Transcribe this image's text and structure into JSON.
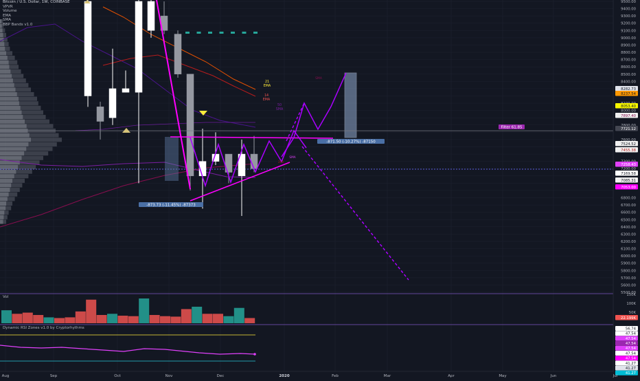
{
  "header": {
    "symbol_line": "Bitcoin / U.S. Dollar, 1W, COINBASE",
    "indicator_lines": [
      "VPVR",
      "Volume",
      "EMA",
      "SMA",
      "BBP Bands v1.0"
    ]
  },
  "price_axis": {
    "ticks": [
      "9500.00",
      "9400.00",
      "9300.00",
      "9200.00",
      "9100.00",
      "9000.00",
      "8900.00",
      "8800.00",
      "8700.00",
      "8600.00",
      "8500.00",
      "8400.00",
      "8100.00",
      "8000.00",
      "7800.00",
      "7600.00",
      "7300.00",
      "7200.00",
      "6800.00",
      "6700.00",
      "6600.00",
      "6500.00",
      "6400.00",
      "6300.00",
      "6200.00",
      "6100.00",
      "6000.00",
      "5900.00",
      "5800.00",
      "5700.00",
      "5600.00",
      "5500.00"
    ],
    "tags": [
      {
        "text": "8282.73",
        "bg": "#e0e3eb",
        "fg": "#131722"
      },
      {
        "text": "8237.54",
        "bg": "#ff9800",
        "fg": "#131722"
      },
      {
        "text": "8053.40",
        "bg": "#f7f700",
        "fg": "#131722"
      },
      {
        "text": "7897.40",
        "bg": "#f0f0f0",
        "fg": "#880e4f"
      },
      {
        "text": "7721.12",
        "bg": "#434651",
        "fg": "#ffffff"
      },
      {
        "text": "7524.52",
        "bg": "#f0f0f0",
        "fg": "#131722"
      },
      {
        "text": "7455.38",
        "bg": "#f0f0f0",
        "fg": "#b71c1c"
      },
      {
        "text": "7258.43",
        "bg": "#e040fb",
        "fg": "#ffffff"
      },
      {
        "text": "7169.58",
        "bg": "#ffffff",
        "fg": "#131722"
      },
      {
        "text": "7085.31",
        "bg": "#f0f0f0",
        "fg": "#131722"
      },
      {
        "text": "7053.00",
        "bg": "#ff00ff",
        "fg": "#ffffff"
      }
    ]
  },
  "annotations": {
    "range_left": "-873.73 (-11.45%) -87373",
    "range_right": "-871.50 (-10.27%) -87150",
    "filter_label": "Filter 61.85",
    "ma21": "21\nEMA",
    "ma14": "14\nEMA",
    "ma_small": "50\nSMA",
    "lbl_top": "SMA",
    "lbl_sma1": "SMA",
    "lbl_sma2": "200"
  },
  "volume_pane": {
    "title": "Vol",
    "axis": [
      "150K",
      "100K",
      "50K"
    ],
    "tag": {
      "text": "22.199K",
      "bg": "#ef5350"
    },
    "bars": [
      {
        "v": 55,
        "c": "up"
      },
      {
        "v": 40,
        "c": "dn"
      },
      {
        "v": 45,
        "c": "dn"
      },
      {
        "v": 35,
        "c": "dn"
      },
      {
        "v": 25,
        "c": "up"
      },
      {
        "v": 22,
        "c": "dn"
      },
      {
        "v": 25,
        "c": "dn"
      },
      {
        "v": 50,
        "c": "dn"
      },
      {
        "v": 100,
        "c": "dn"
      },
      {
        "v": 35,
        "c": "dn"
      },
      {
        "v": 40,
        "c": "up"
      },
      {
        "v": 32,
        "c": "dn"
      },
      {
        "v": 30,
        "c": "dn"
      },
      {
        "v": 105,
        "c": "up"
      },
      {
        "v": 35,
        "c": "dn"
      },
      {
        "v": 30,
        "c": "dn"
      },
      {
        "v": 28,
        "c": "dn"
      },
      {
        "v": 60,
        "c": "dn"
      },
      {
        "v": 70,
        "c": "up"
      },
      {
        "v": 40,
        "c": "dn"
      },
      {
        "v": 40,
        "c": "dn"
      },
      {
        "v": 30,
        "c": "up"
      },
      {
        "v": 65,
        "c": "up"
      },
      {
        "v": 22,
        "c": "dn"
      }
    ]
  },
  "rsi_pane": {
    "title": "Dynamic RSI Zones v1.0 by Cryptorhythms",
    "tags": [
      {
        "text": "56.74",
        "bg": "#ffffff",
        "fg": "#131722"
      },
      {
        "text": "47.54",
        "bg": "#ffffff",
        "fg": "#131722"
      },
      {
        "text": "47.54",
        "bg": "#e040fb",
        "fg": "#ffffff"
      },
      {
        "text": "47.54",
        "bg": "#9c27b0",
        "fg": "#ffffff"
      },
      {
        "text": "47.54",
        "bg": "#e040fb",
        "fg": "#ffffff"
      },
      {
        "text": "47.54",
        "bg": "#ffffff",
        "fg": "#131722"
      },
      {
        "text": "47.54",
        "bg": "#ff00ff",
        "fg": "#ffffff"
      },
      {
        "text": "41.27",
        "bg": "#ffffff",
        "fg": "#131722"
      },
      {
        "text": "41.27",
        "bg": "#e0e3eb",
        "fg": "#131722"
      },
      {
        "text": "41.27",
        "bg": "#00bcd4",
        "fg": "#ffffff"
      }
    ]
  },
  "time_axis": {
    "labels": [
      {
        "t": "Aug",
        "x": 2
      },
      {
        "t": "Sep",
        "x": 72
      },
      {
        "t": "Oct",
        "x": 165
      },
      {
        "t": "Nov",
        "x": 240
      },
      {
        "t": "Dec",
        "x": 315
      },
      {
        "t": "2020",
        "x": 408
      },
      {
        "t": "Feb",
        "x": 482
      },
      {
        "t": "Mar",
        "x": 558
      },
      {
        "t": "Apr",
        "x": 651
      },
      {
        "t": "May",
        "x": 726
      },
      {
        "t": "Jun",
        "x": 800
      },
      {
        "t": "Jul",
        "x": 890
      }
    ]
  },
  "colors": {
    "bg": "#131722",
    "up": "#ffffff",
    "down": "#9598a1",
    "magenta": "#ff00ff",
    "purple": "#c51fff",
    "vol_up": "#26a69a",
    "vol_dn": "#ef5350",
    "grid": "#1e2230",
    "axis_text": "#b2b5be"
  }
}
